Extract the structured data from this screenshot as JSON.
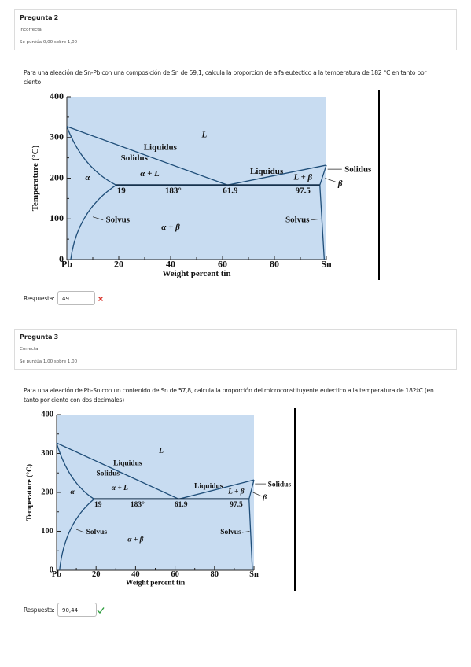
{
  "questions": [
    {
      "title": "Pregunta",
      "number": "2",
      "status": "Incorrecta",
      "grade": "Se puntúa 0,00 sobre 1,00",
      "text": "Para una aleación de Sn-Pb con una composición de Sn de 59,1, calcula la proporcion de alfa eutectico a la temperatura de 182 °C en tanto por ciento",
      "diagram": {
        "yticks": [
          "0",
          "100",
          "200",
          "300",
          "400"
        ],
        "xticks": [
          "Pb",
          "20",
          "40",
          "60",
          "80",
          "Sn"
        ],
        "ylabel": "Temperature (°C)",
        "xlabel": "Weight percent tin",
        "regions": [
          "L",
          "Liquidus",
          "Solidus",
          "α + L",
          "α",
          "19",
          "183°",
          "61.9",
          "Liquidus",
          "L + β",
          "97.5",
          "Solidus",
          "β",
          "Solvus",
          "Solvus",
          "α + β"
        ]
      },
      "answer_label": "Respuesta:",
      "answer": "49"
    },
    {
      "title": "Pregunta",
      "number": "3",
      "status": "Correcta",
      "grade": "Se puntúa 1,00 sobre 1,00",
      "text": "Para una aleación de Pb-Sn con un contenido de Sn de 57,8, calcula la proporción del microconstituyente eutectico a la temperatura de 182ºC (en tanto por ciento con dos decimales)",
      "diagram": {
        "yticks": [
          "0",
          "100",
          "200",
          "300",
          "400"
        ],
        "xticks": [
          "Pb",
          "20",
          "40",
          "60",
          "80",
          "Sn"
        ],
        "ylabel": "Temperature (°C)",
        "xlabel": "Weight percent tin",
        "regions": [
          "L",
          "Liquidus",
          "Solidus",
          "α + L",
          "α",
          "19",
          "183°",
          "61.9",
          "Liquidus",
          "L + β",
          "97.5",
          "Solidus",
          "β",
          "Solvus",
          "Solvus",
          "α + β"
        ]
      },
      "answer_label": "Respuesta:",
      "answer": "90,44"
    }
  ]
}
